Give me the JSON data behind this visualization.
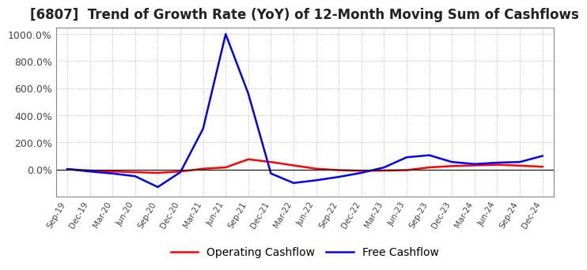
{
  "title": "[6807]  Trend of Growth Rate (YoY) of 12-Month Moving Sum of Cashflows",
  "title_fontsize": 12,
  "ylim": [
    -200,
    1050
  ],
  "yticks": [
    0,
    200,
    400,
    600,
    800,
    1000
  ],
  "ytick_labels": [
    "0.0%",
    "200.0%",
    "400.0%",
    "600.0%",
    "800.0%",
    "1000.0%"
  ],
  "background_color": "#ffffff",
  "grid_color": "#aaaaaa",
  "legend_labels": [
    "Operating Cashflow",
    "Free Cashflow"
  ],
  "legend_colors": [
    "#ff0000",
    "#0000ff"
  ],
  "dates": [
    "Sep-19",
    "Dec-19",
    "Mar-20",
    "Jun-20",
    "Sep-20",
    "Dec-20",
    "Mar-21",
    "Jun-21",
    "Sep-21",
    "Dec-21",
    "Mar-22",
    "Jun-22",
    "Sep-22",
    "Dec-22",
    "Mar-23",
    "Jun-23",
    "Sep-23",
    "Dec-23",
    "Mar-24",
    "Jun-24",
    "Sep-24",
    "Dec-24"
  ],
  "operating_cashflow": [
    2,
    -8,
    -15,
    -20,
    -25,
    -15,
    5,
    15,
    75,
    55,
    30,
    5,
    -5,
    -10,
    -8,
    -5,
    15,
    25,
    30,
    35,
    28,
    20
  ],
  "free_cashflow": [
    3,
    -15,
    -30,
    -50,
    -130,
    -20,
    300,
    1000,
    560,
    -30,
    -100,
    -80,
    -55,
    -25,
    15,
    90,
    105,
    55,
    40,
    50,
    55,
    100
  ]
}
